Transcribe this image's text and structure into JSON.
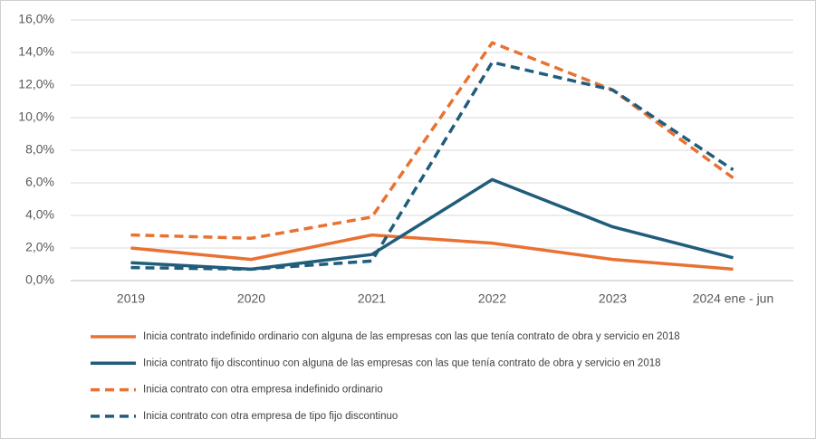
{
  "chart_data": {
    "type": "line",
    "categories": [
      "2019",
      "2020",
      "2021",
      "2022",
      "2023",
      "2024 ene - jun"
    ],
    "ylim": [
      0,
      16
    ],
    "yticks": [
      {
        "value": 0,
        "label": "0,0%"
      },
      {
        "value": 2,
        "label": "2,0%"
      },
      {
        "value": 4,
        "label": "4,0%"
      },
      {
        "value": 6,
        "label": "6,0%"
      },
      {
        "value": 8,
        "label": "8,0%"
      },
      {
        "value": 10,
        "label": "10,0%"
      },
      {
        "value": 12,
        "label": "12,0%"
      },
      {
        "value": 14,
        "label": "14,0%"
      },
      {
        "value": 16,
        "label": "16,0%"
      }
    ],
    "grid": true,
    "series": [
      {
        "name": "Inicia contrato indefinido ordinario con alguna de las empresas con las que tenía contrato de obra y servicio en 2018",
        "color": "#e97132",
        "dashed": false,
        "values": [
          2.0,
          1.3,
          2.8,
          2.3,
          1.3,
          0.7
        ]
      },
      {
        "name": "Inicia contrato fijo discontinuo con alguna de las empresas con las que tenía contrato de obra y servicio en 2018",
        "color": "#1f5d7b",
        "dashed": false,
        "values": [
          1.1,
          0.7,
          1.6,
          6.2,
          3.3,
          1.4
        ]
      },
      {
        "name": "Inicia contrato con otra empresa indefinido ordinario",
        "color": "#e97132",
        "dashed": true,
        "values": [
          2.8,
          2.6,
          3.9,
          14.6,
          11.7,
          6.3
        ]
      },
      {
        "name": "Inicia contrato con otra empresa de tipo fijo discontinuo",
        "color": "#1f5d7b",
        "dashed": true,
        "values": [
          0.8,
          0.7,
          1.2,
          13.4,
          11.7,
          6.8
        ]
      }
    ]
  }
}
